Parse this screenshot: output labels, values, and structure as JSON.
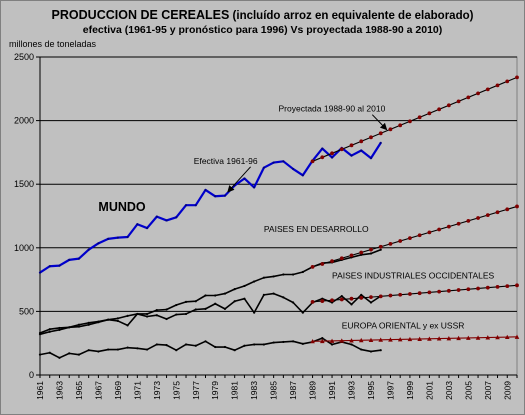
{
  "header": {
    "title_main": "PRODUCCION DE CEREALES",
    "title_sub": "(incluído arroz en equivalente de elaborado)",
    "title_line2": "efectiva (1961-95 y pronóstico para 1996) Vs proyectada 1988-90 a 2010)",
    "unit_label": "millones de toneladas"
  },
  "chart_data": {
    "type": "line",
    "title": "PRODUCCION DE CEREALES (incluído arroz en equivalente de elaborado) efectiva (1961-95 y pronóstico para 1996) Vs proyectada 1988-90 a 2010)",
    "ylabel": "millones de toneladas",
    "xlim": [
      1961,
      2010
    ],
    "ylim": [
      0,
      2500
    ],
    "yticks": [
      0,
      500,
      1000,
      1500,
      2000,
      2500
    ],
    "xticks": [
      "1961",
      "1963",
      "1965",
      "1967",
      "1969",
      "1971",
      "1973",
      "1975",
      "1977",
      "1979",
      "1981",
      "1983",
      "1985",
      "1987",
      "1989",
      "1991",
      "1993",
      "1995",
      "1997",
      "1999",
      "2001",
      "2003",
      "2005",
      "2007",
      "2009"
    ],
    "grid": "horizontal",
    "series": [
      {
        "name": "MUNDO",
        "kind": "actual",
        "color": "#0000cc",
        "x": [
          1961,
          1962,
          1963,
          1964,
          1965,
          1966,
          1967,
          1968,
          1969,
          1970,
          1971,
          1972,
          1973,
          1974,
          1975,
          1976,
          1977,
          1978,
          1979,
          1980,
          1981,
          1982,
          1983,
          1984,
          1985,
          1986,
          1987,
          1988,
          1989,
          1990,
          1991,
          1992,
          1993,
          1994,
          1995,
          1996
        ],
        "y": [
          805,
          855,
          860,
          905,
          915,
          985,
          1035,
          1070,
          1080,
          1085,
          1185,
          1155,
          1245,
          1215,
          1240,
          1335,
          1335,
          1455,
          1405,
          1410,
          1490,
          1545,
          1475,
          1630,
          1670,
          1680,
          1620,
          1570,
          1685,
          1780,
          1710,
          1785,
          1725,
          1765,
          1705,
          1825
        ]
      },
      {
        "name": "PAISES EN DESARROLLO",
        "kind": "actual",
        "color": "#000000",
        "x": [
          1961,
          1962,
          1963,
          1964,
          1965,
          1966,
          1967,
          1968,
          1969,
          1970,
          1971,
          1972,
          1973,
          1974,
          1975,
          1976,
          1977,
          1978,
          1979,
          1980,
          1981,
          1982,
          1983,
          1984,
          1985,
          1986,
          1987,
          1988,
          1989,
          1990,
          1991,
          1992,
          1993,
          1994,
          1995,
          1996
        ],
        "y": [
          320,
          340,
          355,
          375,
          380,
          395,
          415,
          435,
          445,
          465,
          480,
          480,
          510,
          515,
          550,
          575,
          580,
          625,
          625,
          640,
          675,
          700,
          735,
          765,
          775,
          790,
          790,
          810,
          850,
          880,
          885,
          905,
          925,
          945,
          955,
          985
        ]
      },
      {
        "name": "PAISES INDUSTRIALES OCCIDENTALES",
        "kind": "actual",
        "color": "#000000",
        "x": [
          1961,
          1962,
          1963,
          1964,
          1965,
          1966,
          1967,
          1968,
          1969,
          1970,
          1971,
          1972,
          1973,
          1974,
          1975,
          1976,
          1977,
          1978,
          1979,
          1980,
          1981,
          1982,
          1983,
          1984,
          1985,
          1986,
          1987,
          1988,
          1989,
          1990,
          1991,
          1992,
          1993,
          1994,
          1995,
          1996
        ],
        "y": [
          330,
          360,
          370,
          375,
          395,
          410,
          420,
          435,
          425,
          390,
          480,
          460,
          470,
          440,
          475,
          480,
          515,
          520,
          560,
          520,
          580,
          600,
          490,
          630,
          640,
          610,
          570,
          490,
          570,
          600,
          570,
          620,
          555,
          630,
          570,
          620
        ]
      },
      {
        "name": "EUROPA ORIENTAL y ex USSR",
        "kind": "actual",
        "color": "#000000",
        "x": [
          1961,
          1962,
          1963,
          1964,
          1965,
          1966,
          1967,
          1968,
          1969,
          1970,
          1971,
          1972,
          1973,
          1974,
          1975,
          1976,
          1977,
          1978,
          1979,
          1980,
          1981,
          1982,
          1983,
          1984,
          1985,
          1986,
          1987,
          1988,
          1989,
          1990,
          1991,
          1992,
          1993,
          1994,
          1995,
          1996
        ],
        "y": [
          160,
          175,
          135,
          170,
          160,
          195,
          185,
          200,
          200,
          215,
          210,
          200,
          240,
          235,
          195,
          240,
          230,
          265,
          220,
          220,
          195,
          230,
          240,
          240,
          255,
          260,
          265,
          245,
          260,
          290,
          240,
          260,
          240,
          200,
          185,
          195
        ]
      },
      {
        "name": "Proyectada 1988-90 al 2010 (MUNDO)",
        "kind": "projected",
        "color": "#000000",
        "marker_color": "#800000",
        "x": [
          1989,
          2010
        ],
        "y": [
          1680,
          2340
        ]
      },
      {
        "name": "Proyectada 1988-90 al 2010 (PAISES EN DESARROLLO)",
        "kind": "projected",
        "color": "#000000",
        "marker_color": "#800000",
        "x": [
          1989,
          2010
        ],
        "y": [
          850,
          1325
        ]
      },
      {
        "name": "Proyectada 1988-90 al 2010 (PAISES INDUSTRIALES OCCIDENTALES)",
        "kind": "projected",
        "color": "#000000",
        "marker_color": "#800000",
        "x": [
          1989,
          2010
        ],
        "y": [
          575,
          705
        ]
      },
      {
        "name": "Proyectada 1988-90 al 2010 (EUROPA ORIENTAL y ex USSR)",
        "kind": "projected",
        "color": "#800000",
        "marker_color": "#800000",
        "x": [
          1989,
          2010
        ],
        "y": [
          265,
          300
        ]
      }
    ],
    "annotations": [
      {
        "text": "MUNDO",
        "style": "big",
        "x": 1967,
        "y": 1290
      },
      {
        "text": "PAISES EN DESARROLLO",
        "style": "normal",
        "x": 1984,
        "y": 1125
      },
      {
        "text": "PAISES INDUSTRIALES OCCIDENTALES",
        "style": "normal",
        "x": 1991,
        "y": 760
      },
      {
        "text": "EUROPA ORIENTAL y ex USSR",
        "style": "normal",
        "x": 1992,
        "y": 365
      },
      {
        "text": "Efectiva 1961-96",
        "style": "normal",
        "x": 1976.8,
        "y": 1660,
        "arrow_to": [
          1980.3,
          1440
        ]
      },
      {
        "text": "Proyectada 1988-90 al 2010",
        "style": "normal",
        "x": 1985.5,
        "y": 2070,
        "arrow_to": [
          1996.6,
          1930
        ]
      }
    ]
  }
}
